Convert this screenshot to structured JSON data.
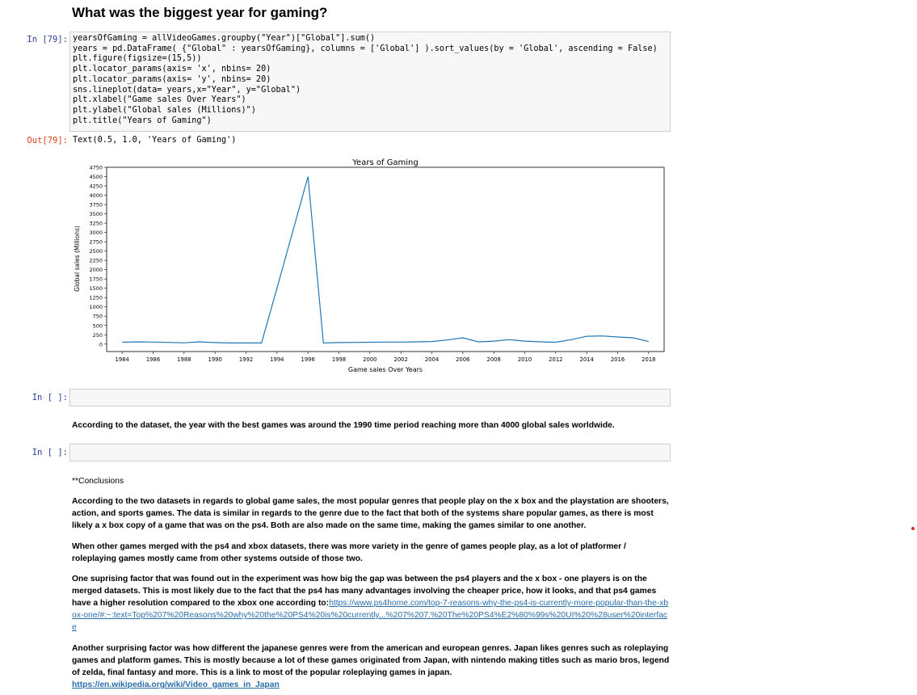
{
  "heading": "What was the biggest year for gaming?",
  "cells": {
    "in79_prompt": "In [79]:",
    "out79_prompt": "Out[79]:",
    "in_empty1_prompt": "In [ ]:",
    "in_empty2_prompt": "In [ ]:",
    "out79_text": "Text(0.5, 1.0, 'Years of Gaming')"
  },
  "code_lines": [
    "yearsOfGaming = allVideoGames.groupby(\"Year\")[\"Global\"].sum()",
    "years = pd.DataFrame( {\"Global\" : yearsOfGaming}, columns = ['Global'] ).sort_values(by = 'Global', ascending = False)",
    "plt.figure(figsize=(15,5))",
    "plt.locator_params(axis= 'x', nbins= 20)",
    "plt.locator_params(axis= 'y', nbins= 20)",
    "sns.lineplot(data= years,x=\"Year\", y=\"Global\")",
    "plt.xlabel(\"Game sales Over Years\")",
    "plt.ylabel(\"Global sales (Millions)\")",
    "plt.title(\"Years of Gaming\")"
  ],
  "chart_data": {
    "type": "line",
    "title": "Years of Gaming",
    "xlabel": "Game sales Over Years",
    "ylabel": "Global sales (Millions)",
    "xlim": [
      1983,
      2019
    ],
    "ylim": [
      -200,
      4750
    ],
    "xticks": [
      "1984",
      "1986",
      "1988",
      "1990",
      "1992",
      "1994",
      "1996",
      "1998",
      "2000",
      "2002",
      "2004",
      "2006",
      "2008",
      "2010",
      "2012",
      "2014",
      "2016",
      "2018"
    ],
    "yticks": [
      "4750",
      "4500",
      "4250",
      "4000",
      "3750",
      "3500",
      "3250",
      "3000",
      "2750",
      "2500",
      "2250",
      "2000",
      "1750",
      "1500",
      "1250",
      "1000",
      "750",
      "500",
      "250",
      "0"
    ],
    "x": [
      1984,
      1985,
      1986,
      1987,
      1988,
      1989,
      1990,
      1991,
      1992,
      1993,
      1994,
      1995,
      1996,
      1997,
      1998,
      1999,
      2000,
      2001,
      2002,
      2003,
      2004,
      2005,
      2006,
      2007,
      2008,
      2009,
      2010,
      2011,
      2012,
      2013,
      2014,
      2015,
      2016,
      2017,
      2018
    ],
    "y": [
      50,
      60,
      55,
      45,
      35,
      60,
      40,
      30,
      30,
      30,
      1500,
      3000,
      4500,
      30,
      40,
      45,
      50,
      55,
      55,
      60,
      70,
      110,
      170,
      60,
      80,
      120,
      80,
      60,
      50,
      120,
      210,
      220,
      190,
      170,
      70
    ],
    "color": "#1f77b4"
  },
  "markdown": {
    "answer": "According to the dataset, the year with the best games was around the 1990 time period reaching more than 4000 global sales worldwide.",
    "conclusions_title": "**Conclusions",
    "p1": "According to the two datasets in regards to global game sales, the most popular genres that people play on the x box and the playstation are shooters, action, and sports games. The data is similar in regards to the genre due to the fact that both of the systems share popular games, as there is most likely a x box copy of a game that was on the ps4. Both are also made on the same time, making the games similar to one another.",
    "p2": "When other games merged with the ps4 and xbox datasets, there was more variety in the genre of games people play, as a lot of platformer / roleplaying games mostly came from other systems outside of those two.",
    "p3": "One suprising factor that was found out in the experiment was how big the gap was between the ps4 players and the x box - one players is on the merged datasets. This is most likely due to the fact that the ps4 has many advantages involving the cheaper price, how it looks, and that ps4 games have a higher resolution compared to the xbox one according to:",
    "p3_link": "https://www.ps4home.com/top-7-reasons-why-the-ps4-is-currently-more-popular-than-the-xbox-one/#:~:text=Top%207%20Reasons%20why%20the%20PS4%20is%20currently...%207%207.%20The%20PS4%E2%80%99s%20UI%20%28user%20interface",
    "p4": "Another surprising factor was how different the japanese genres were from the american and european genres. Japan likes genres such as roleplaying games and platform games. This is mostly because a lot of these games originated from Japan, with nintendo making titles such as mario bros, legend of zelda, final fantasy and more. This is a link to most of the popular roleplaying games in japan.",
    "p4_link": "https://en.wikipedia.org/wiki/Video_games_in_Japan"
  }
}
